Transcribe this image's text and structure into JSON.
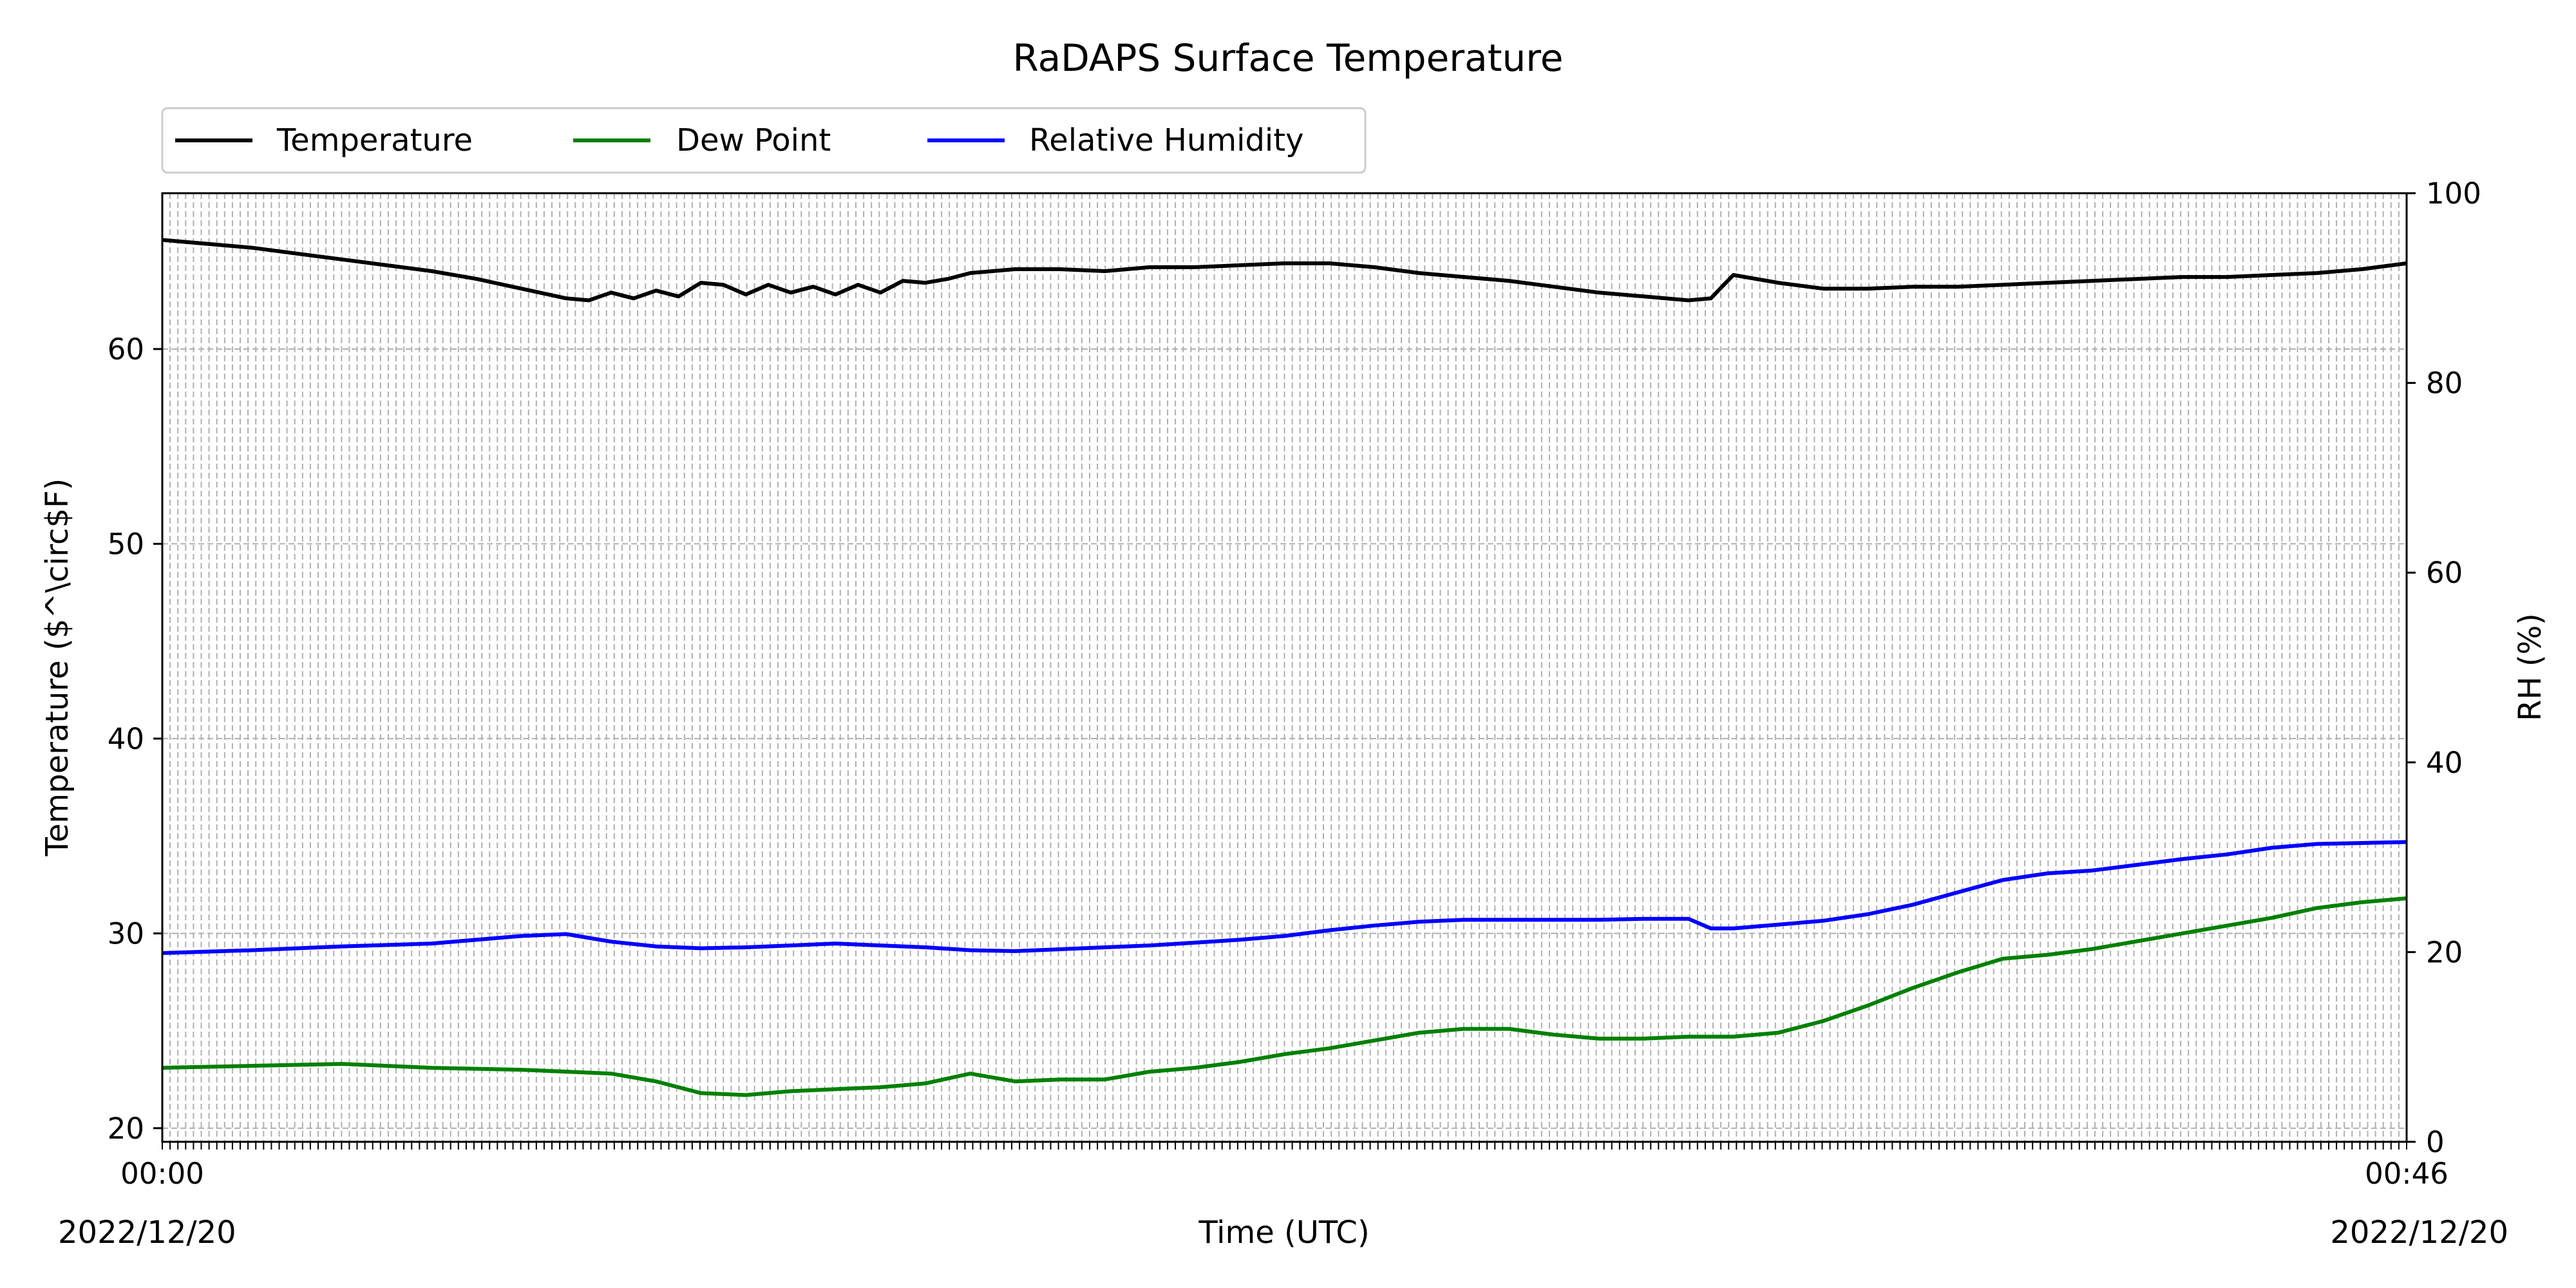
{
  "chart_data": {
    "type": "line",
    "title": "RaDAPS Surface Temperature",
    "xlabel": "Time (UTC)",
    "ylabel_left": "Temperature ($^\\circ$F)",
    "ylabel_right": "RH (%)",
    "ylim_left": [
      19.3,
      68
    ],
    "ylim_right": [
      0,
      100
    ],
    "yticks_left": [
      20,
      30,
      40,
      50,
      60
    ],
    "yticks_right": [
      0,
      20,
      40,
      60,
      80,
      100
    ],
    "xlim": [
      0,
      1
    ],
    "grid": true,
    "legend_placement": "above-top-left",
    "date_left": "2022/12/20",
    "date_right": "2022/12/20",
    "x_tick_label_first": "00:00",
    "x_tick_label_last": "00:46",
    "series": [
      {
        "name": "Temperature",
        "axis": "left",
        "color": "#000000",
        "x": [
          0,
          0.02,
          0.04,
          0.06,
          0.08,
          0.1,
          0.12,
          0.14,
          0.16,
          0.18,
          0.19,
          0.2,
          0.21,
          0.22,
          0.23,
          0.24,
          0.25,
          0.26,
          0.27,
          0.28,
          0.29,
          0.3,
          0.31,
          0.32,
          0.33,
          0.34,
          0.35,
          0.36,
          0.38,
          0.4,
          0.42,
          0.44,
          0.46,
          0.48,
          0.5,
          0.52,
          0.54,
          0.56,
          0.58,
          0.6,
          0.62,
          0.64,
          0.66,
          0.68,
          0.69,
          0.7,
          0.72,
          0.74,
          0.76,
          0.78,
          0.8,
          0.82,
          0.84,
          0.86,
          0.88,
          0.9,
          0.92,
          0.94,
          0.96,
          0.98,
          1.0
        ],
        "y": [
          65.6,
          65.4,
          65.2,
          64.9,
          64.6,
          64.3,
          64.0,
          63.6,
          63.1,
          62.6,
          62.5,
          62.9,
          62.6,
          63.0,
          62.7,
          63.4,
          63.3,
          62.8,
          63.3,
          62.9,
          63.2,
          62.8,
          63.3,
          62.9,
          63.5,
          63.4,
          63.6,
          63.9,
          64.1,
          64.1,
          64.0,
          64.2,
          64.2,
          64.3,
          64.4,
          64.4,
          64.2,
          63.9,
          63.7,
          63.5,
          63.2,
          62.9,
          62.7,
          62.5,
          62.6,
          63.8,
          63.4,
          63.1,
          63.1,
          63.2,
          63.2,
          63.3,
          63.4,
          63.5,
          63.6,
          63.7,
          63.7,
          63.8,
          63.9,
          64.1,
          64.4
        ]
      },
      {
        "name": "Dew Point",
        "axis": "left",
        "color": "#008000",
        "x": [
          0,
          0.04,
          0.08,
          0.12,
          0.16,
          0.2,
          0.22,
          0.24,
          0.26,
          0.28,
          0.3,
          0.32,
          0.34,
          0.36,
          0.38,
          0.4,
          0.42,
          0.44,
          0.46,
          0.48,
          0.5,
          0.52,
          0.54,
          0.56,
          0.58,
          0.6,
          0.62,
          0.64,
          0.66,
          0.68,
          0.7,
          0.72,
          0.74,
          0.76,
          0.78,
          0.8,
          0.82,
          0.84,
          0.86,
          0.88,
          0.9,
          0.92,
          0.94,
          0.96,
          0.98,
          1.0
        ],
        "y": [
          23.1,
          23.2,
          23.3,
          23.1,
          23.0,
          22.8,
          22.4,
          21.8,
          21.7,
          21.9,
          22.0,
          22.1,
          22.3,
          22.8,
          22.4,
          22.5,
          22.5,
          22.9,
          23.1,
          23.4,
          23.8,
          24.1,
          24.5,
          24.9,
          25.1,
          25.1,
          24.8,
          24.6,
          24.6,
          24.7,
          24.7,
          24.9,
          25.5,
          26.3,
          27.2,
          28.0,
          28.7,
          28.9,
          29.2,
          29.6,
          30.0,
          30.4,
          30.8,
          31.3,
          31.6,
          31.8
        ]
      },
      {
        "name": "Relative Humidity",
        "axis": "right",
        "color": "#0000ff",
        "x": [
          0,
          0.04,
          0.08,
          0.12,
          0.16,
          0.18,
          0.2,
          0.22,
          0.24,
          0.26,
          0.28,
          0.3,
          0.32,
          0.34,
          0.36,
          0.38,
          0.4,
          0.42,
          0.44,
          0.46,
          0.48,
          0.5,
          0.52,
          0.54,
          0.56,
          0.58,
          0.6,
          0.62,
          0.64,
          0.66,
          0.68,
          0.69,
          0.7,
          0.72,
          0.74,
          0.76,
          0.78,
          0.8,
          0.82,
          0.84,
          0.86,
          0.88,
          0.9,
          0.92,
          0.94,
          0.96,
          0.98,
          1.0
        ],
        "y": [
          19.9,
          20.2,
          20.6,
          20.9,
          21.7,
          21.9,
          21.1,
          20.6,
          20.4,
          20.5,
          20.7,
          20.9,
          20.7,
          20.5,
          20.2,
          20.1,
          20.3,
          20.5,
          20.7,
          21.0,
          21.3,
          21.7,
          22.3,
          22.8,
          23.2,
          23.4,
          23.4,
          23.4,
          23.4,
          23.5,
          23.5,
          22.5,
          22.5,
          22.9,
          23.3,
          24.0,
          25.0,
          26.3,
          27.6,
          28.3,
          28.6,
          29.2,
          29.8,
          30.3,
          31.0,
          31.4,
          31.5,
          31.6
        ]
      }
    ]
  }
}
